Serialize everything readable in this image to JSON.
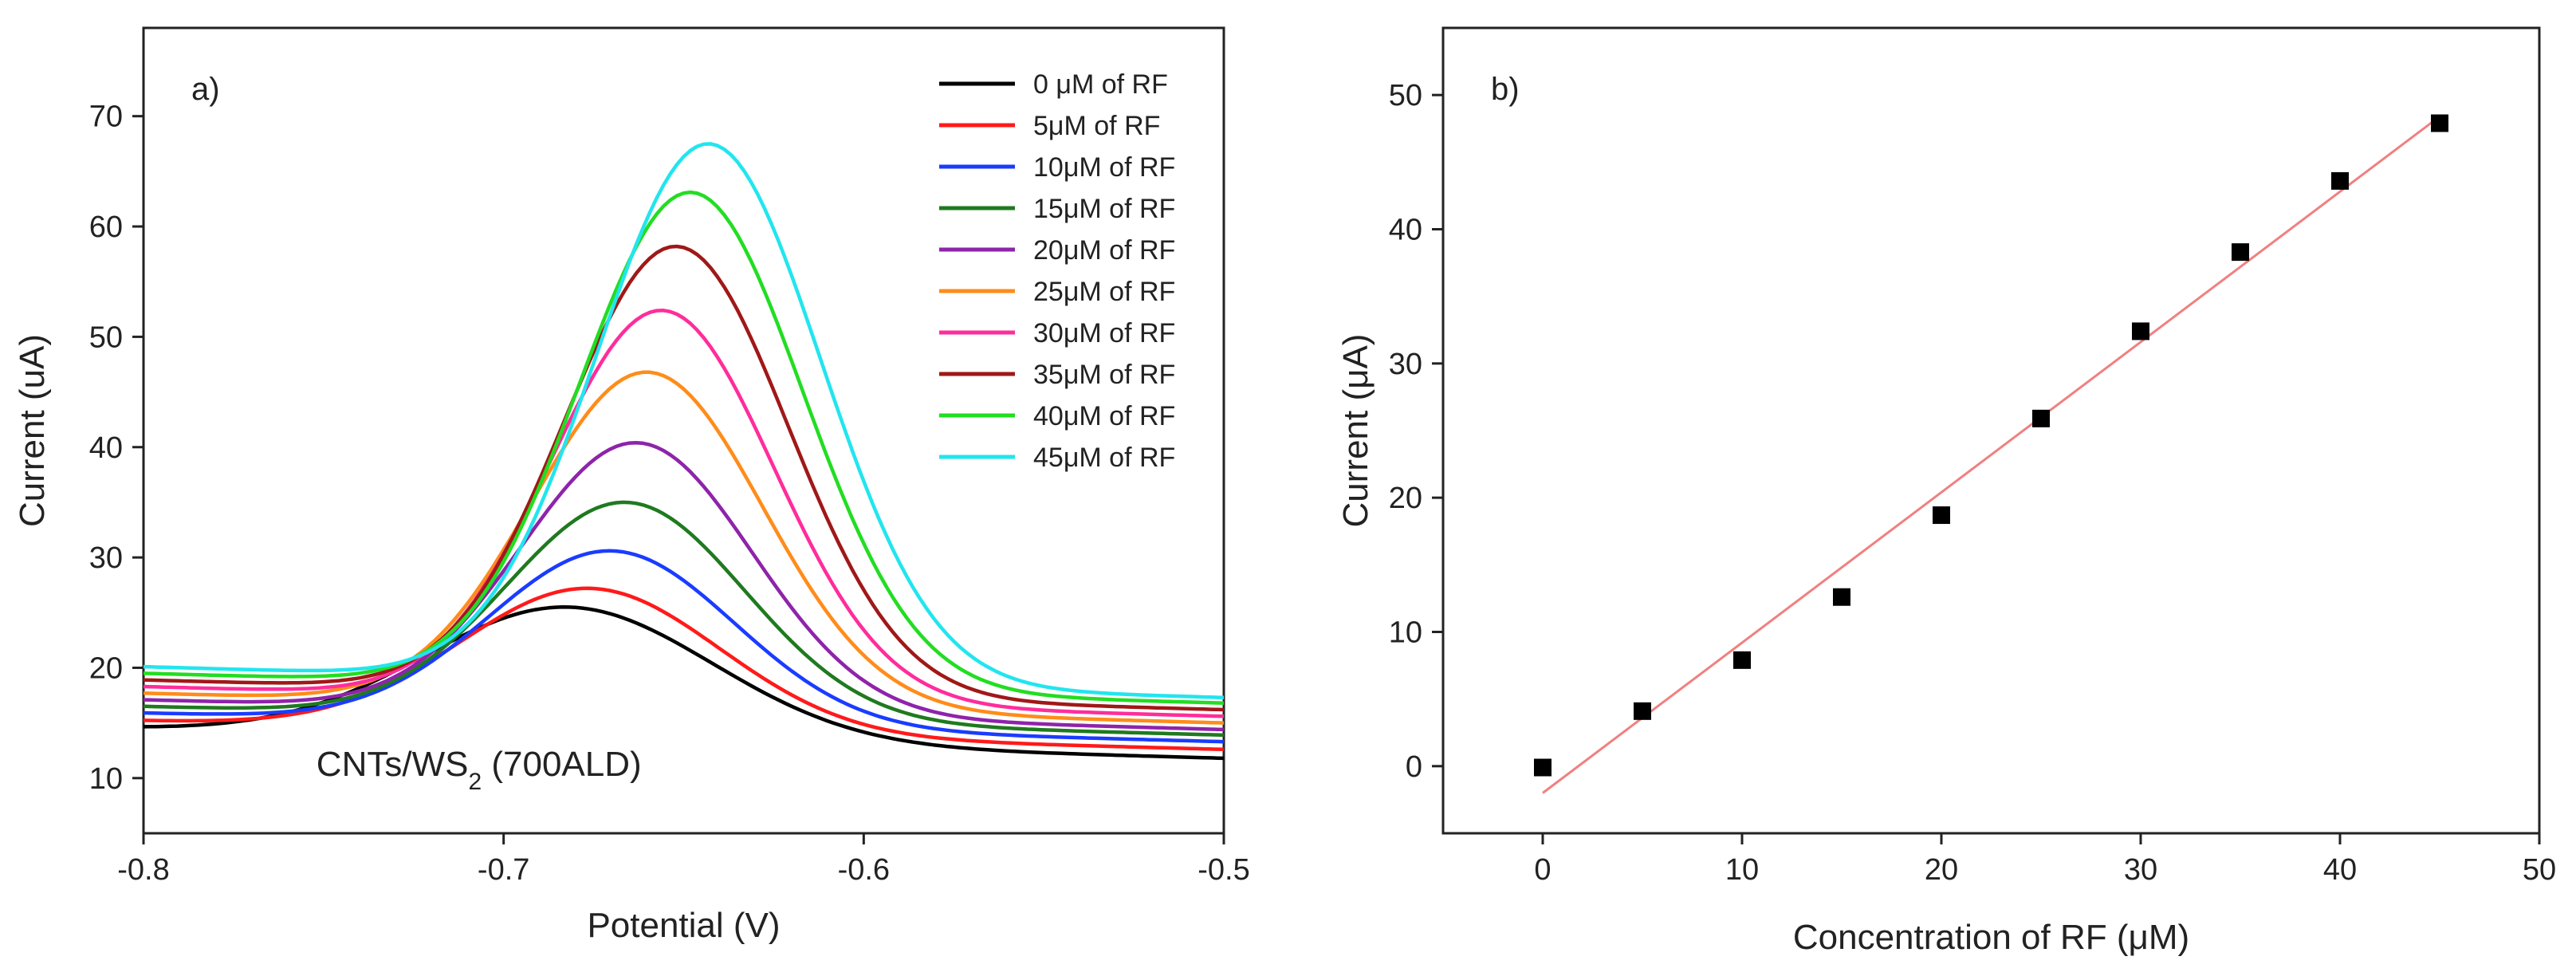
{
  "chart_data": [
    {
      "type": "line",
      "panel_label": "a)",
      "annotation": "CNTs/WS",
      "annotation_sub": "2",
      "annotation_tail": " (700ALD)",
      "xlabel": "Potential (V)",
      "ylabel": "Current (uA)",
      "xlim": [
        -0.8,
        -0.5
      ],
      "ylim": [
        5,
        78
      ],
      "x_ticks": [
        -0.8,
        -0.7,
        -0.6,
        -0.5
      ],
      "x_tick_labels": [
        "-0.8",
        "-0.7",
        "-0.6",
        "-0.5"
      ],
      "y_ticks": [
        10,
        20,
        30,
        40,
        50,
        60,
        70
      ],
      "y_tick_labels": [
        "10",
        "20",
        "30",
        "40",
        "50",
        "60",
        "70"
      ],
      "legend_position": "top-right",
      "series": [
        {
          "name": "0 μM of RF",
          "color": "#000000",
          "baseline_left": 14.5,
          "baseline_right": 11.8,
          "peak": 25.5,
          "peak_x": -0.682,
          "width": 0.04
        },
        {
          "name": "5μM of RF",
          "color": "#ff1a1a",
          "baseline_left": 15.2,
          "baseline_right": 12.6,
          "peak": 27.2,
          "peak_x": -0.676,
          "width": 0.036
        },
        {
          "name": "10μM of RF",
          "color": "#1a3cff",
          "baseline_left": 15.9,
          "baseline_right": 13.3,
          "peak": 30.6,
          "peak_x": -0.67,
          "width": 0.034
        },
        {
          "name": "15μM of RF",
          "color": "#1f7a1f",
          "baseline_left": 16.5,
          "baseline_right": 13.9,
          "peak": 35.0,
          "peak_x": -0.666,
          "width": 0.033
        },
        {
          "name": "20μM of RF",
          "color": "#8e24aa",
          "baseline_left": 17.1,
          "baseline_right": 14.4,
          "peak": 40.4,
          "peak_x": -0.663,
          "width": 0.032
        },
        {
          "name": "25μM of RF",
          "color": "#ff8c1a",
          "baseline_left": 17.7,
          "baseline_right": 15.0,
          "peak": 46.8,
          "peak_x": -0.66,
          "width": 0.032
        },
        {
          "name": "30μM of RF",
          "color": "#ff2d9b",
          "baseline_left": 18.3,
          "baseline_right": 15.6,
          "peak": 52.4,
          "peak_x": -0.656,
          "width": 0.031
        },
        {
          "name": "35μM of RF",
          "color": "#a01818",
          "baseline_left": 18.9,
          "baseline_right": 16.2,
          "peak": 58.2,
          "peak_x": -0.652,
          "width": 0.031
        },
        {
          "name": "40μM of RF",
          "color": "#22dd22",
          "baseline_left": 19.5,
          "baseline_right": 16.8,
          "peak": 63.1,
          "peak_x": -0.648,
          "width": 0.031
        },
        {
          "name": "45μM of RF",
          "color": "#22e5ee",
          "baseline_left": 20.1,
          "baseline_right": 17.3,
          "peak": 67.5,
          "peak_x": -0.643,
          "width": 0.031
        }
      ]
    },
    {
      "type": "scatter",
      "panel_label": "b)",
      "xlabel": "Concentration of RF (μM)",
      "ylabel": "Current (μA)",
      "xlim": [
        -5,
        50
      ],
      "ylim": [
        -5,
        55
      ],
      "x_ticks": [
        0,
        10,
        20,
        30,
        40,
        50
      ],
      "x_tick_labels": [
        "0",
        "10",
        "20",
        "30",
        "40",
        "50"
      ],
      "y_ticks": [
        0,
        10,
        20,
        30,
        40,
        50
      ],
      "y_tick_labels": [
        "0",
        "10",
        "20",
        "30",
        "40",
        "50"
      ],
      "x": [
        0,
        5,
        10,
        15,
        20,
        25,
        30,
        35,
        40,
        45
      ],
      "y": [
        -0.1,
        4.1,
        7.9,
        12.6,
        18.7,
        25.9,
        32.4,
        38.3,
        43.6,
        47.9
      ],
      "marker_color": "#000000",
      "fit_line": {
        "color": "#f08080",
        "x": [
          0,
          45
        ],
        "y": [
          -2.0,
          48.4
        ]
      }
    }
  ]
}
